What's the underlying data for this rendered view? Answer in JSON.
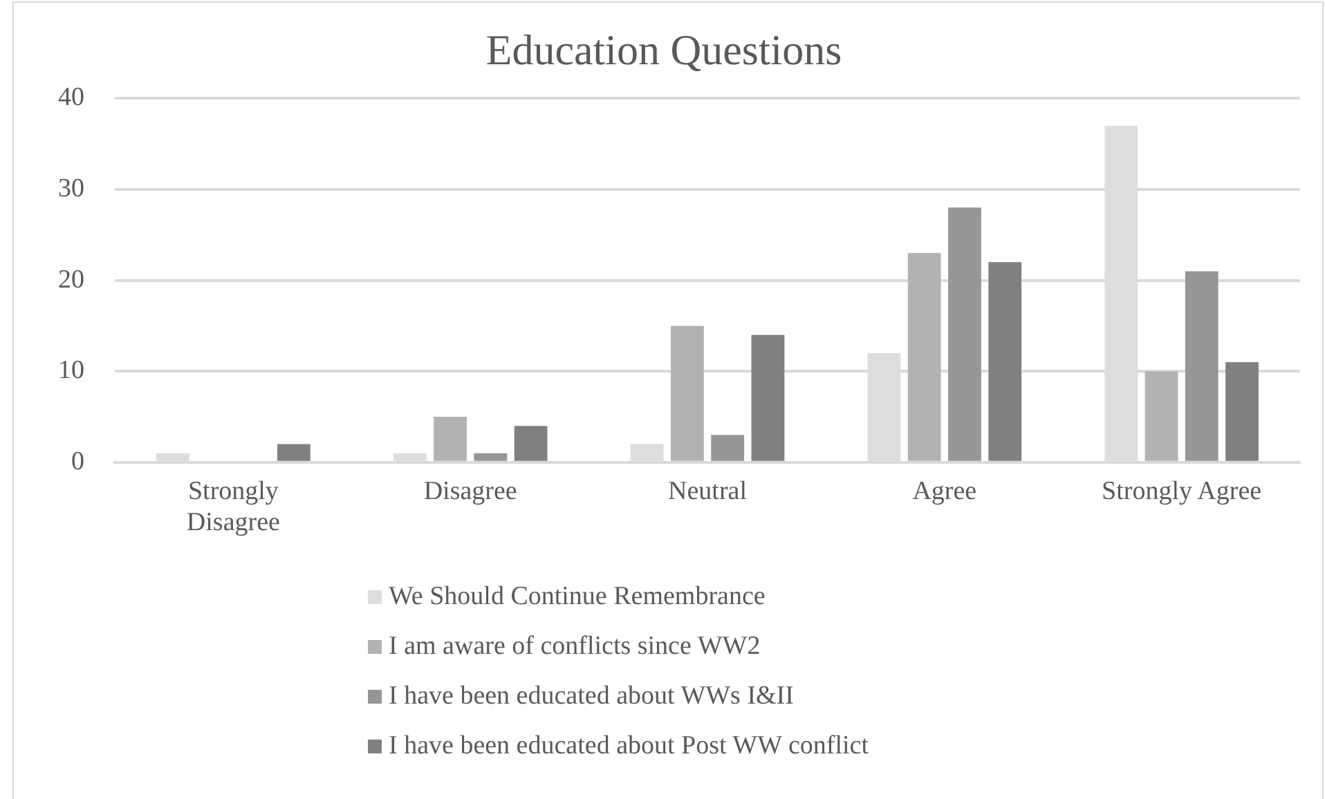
{
  "chart_data": {
    "type": "bar",
    "title": "Education Questions",
    "categories": [
      "Strongly Disagree",
      "Disagree",
      "Neutral",
      "Agree",
      "Strongly Agree"
    ],
    "series": [
      {
        "name": "We Should Continue Remembrance",
        "color": "#dddddd",
        "values": [
          1,
          1,
          2,
          12,
          37
        ]
      },
      {
        "name": "I am aware of conflicts since WW2",
        "color": "#b2b2b2",
        "values": [
          0,
          5,
          15,
          23,
          10
        ]
      },
      {
        "name": "I have been educated about WWs I&II",
        "color": "#969696",
        "values": [
          0,
          1,
          3,
          28,
          21
        ]
      },
      {
        "name": "I have been educated about Post WW conflict",
        "color": "#808080",
        "values": [
          2,
          4,
          14,
          22,
          11
        ]
      }
    ],
    "ylim": [
      0,
      40
    ],
    "yticks": [
      0,
      10,
      20,
      30,
      40
    ],
    "grid": "y",
    "legend": "bottom"
  }
}
